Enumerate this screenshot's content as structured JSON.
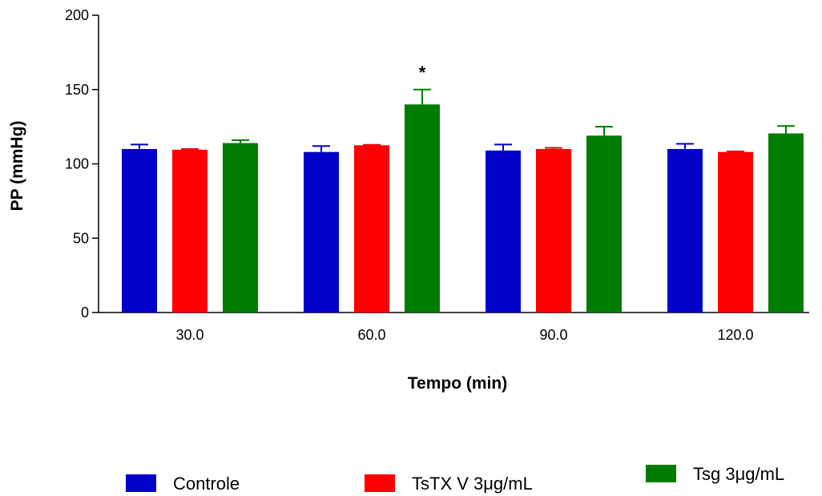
{
  "chart_data": {
    "type": "bar",
    "title": "",
    "xlabel": "Tempo (min)",
    "ylabel": "PP (mmHg)",
    "ylim": [
      0,
      200
    ],
    "yticks": [
      "0",
      "50",
      "100",
      "150",
      "200"
    ],
    "categories": [
      "30.0",
      "60.0",
      "90.0",
      "120.0"
    ],
    "series": [
      {
        "name": "Controle",
        "color": "#0000c8",
        "values": [
          110,
          108,
          109,
          110
        ],
        "errors": [
          3,
          4,
          4,
          3.5
        ]
      },
      {
        "name": "TsTX V 3μg/mL",
        "color": "#ff0000",
        "values": [
          109.5,
          112.5,
          110,
          108
        ],
        "errors": [
          0.5,
          0.3,
          0.8,
          0.4
        ]
      },
      {
        "name": "Tsg 3μg/mL",
        "color": "#007d00",
        "values": [
          114,
          140,
          119,
          120.5
        ],
        "errors": [
          2,
          10,
          6,
          5
        ]
      }
    ],
    "annotations": [
      {
        "text": "*",
        "category": "60.0",
        "series": "Tsg 3μg/mL"
      }
    ],
    "legend_position": "bottom",
    "grid": false
  }
}
